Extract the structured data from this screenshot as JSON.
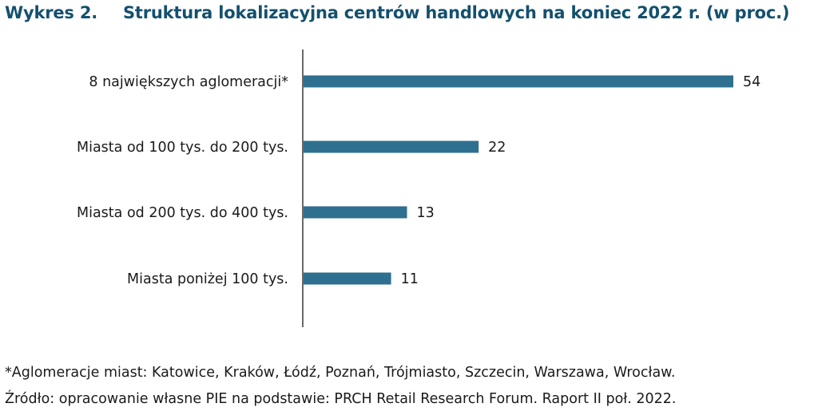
{
  "title": {
    "number": "Wykres 2.",
    "text": "Struktura lokalizacyjna centrów handlowych na koniec 2022 r. (w proc.)"
  },
  "chart_data": {
    "type": "bar",
    "orientation": "horizontal",
    "title": "Struktura lokalizacyjna centrów handlowych na koniec 2022 r. (w proc.)",
    "xlabel": "",
    "ylabel": "",
    "unit": "%",
    "xlim": [
      0,
      54
    ],
    "grid": false,
    "categories": [
      "8 największych aglomeracji*",
      "Miasta od 100 tys. do 200 tys.",
      "Miasta od 200 tys. do 400 tys.",
      "Miasta poniżej 100 tys."
    ],
    "values": [
      54,
      22,
      13,
      11
    ],
    "value_labels": [
      "54",
      "22",
      "13",
      "11"
    ],
    "bar_color": "#2f6f8f"
  },
  "footnotes": {
    "note": "*Aglomeracje miast: Katowice, Kraków, Łódź, Poznań, Trójmiasto, Szczecin, Warszawa, Wrocław.",
    "source": "Źródło: opracowanie własne PIE na podstawie: PRCH Retail Research Forum. Raport II poł. 2022."
  }
}
